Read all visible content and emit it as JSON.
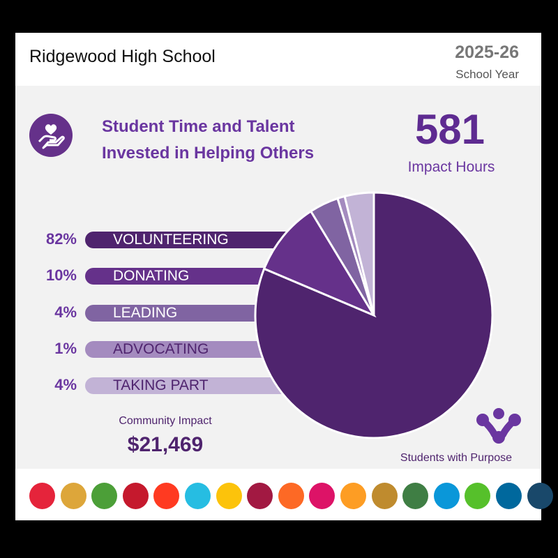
{
  "header": {
    "school": "Ridgewood High School",
    "year": "2025-26",
    "year_label": "School Year"
  },
  "main": {
    "title_line1": "Student Time and Talent",
    "title_line2": "Invested in Helping Others",
    "impact_hours": "581",
    "impact_hours_label": "Impact Hours",
    "community_impact_label": "Community Impact",
    "community_impact_value": "$21,469",
    "brand": "Students with Purpose"
  },
  "chart_data": {
    "type": "pie",
    "categories": [
      "VOLUNTEERING",
      "DONATING",
      "LEADING",
      "ADVOCATING",
      "TAKING PART"
    ],
    "labels": [
      "82%",
      "10%",
      "4%",
      "1%",
      "4%"
    ],
    "values": [
      82,
      10,
      4,
      1,
      4
    ],
    "colors": [
      "#4f246e",
      "#65318a",
      "#8064a2",
      "#a48bbf",
      "#c2b3d6"
    ],
    "text_colors": [
      "#ffffff",
      "#ffffff",
      "#ffffff",
      "#4f246e",
      "#4f246e"
    ]
  },
  "sdg_icons": [
    {
      "name": "no-poverty-icon",
      "color": "#e5243b"
    },
    {
      "name": "zero-hunger-icon",
      "color": "#dda63a"
    },
    {
      "name": "good-health-icon",
      "color": "#4c9f38"
    },
    {
      "name": "quality-education-icon",
      "color": "#c5192d"
    },
    {
      "name": "gender-equality-icon",
      "color": "#ff3a21"
    },
    {
      "name": "clean-water-icon",
      "color": "#26bde2"
    },
    {
      "name": "clean-energy-icon",
      "color": "#fcc30b"
    },
    {
      "name": "decent-work-icon",
      "color": "#a21942"
    },
    {
      "name": "industry-innovation-icon",
      "color": "#fd6925"
    },
    {
      "name": "reduced-inequalities-icon",
      "color": "#dd1367"
    },
    {
      "name": "sustainable-cities-icon",
      "color": "#fd9d24"
    },
    {
      "name": "responsible-consumption-icon",
      "color": "#bf8b2e"
    },
    {
      "name": "climate-action-icon",
      "color": "#3f7e44"
    },
    {
      "name": "life-below-water-icon",
      "color": "#0a97d9"
    },
    {
      "name": "life-on-land-icon",
      "color": "#56c02b"
    },
    {
      "name": "peace-justice-icon",
      "color": "#00689d"
    },
    {
      "name": "partnerships-icon",
      "color": "#19486a"
    }
  ]
}
